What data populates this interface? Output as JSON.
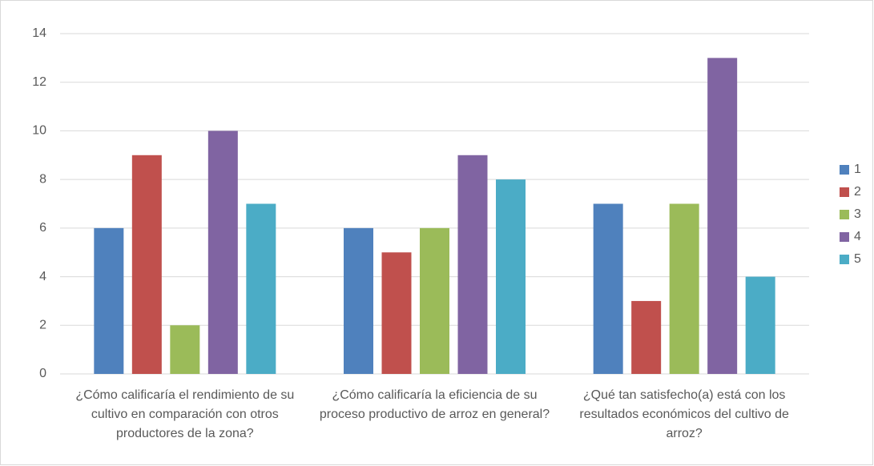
{
  "chart_data": {
    "type": "bar",
    "categories": [
      "¿Cómo calificaría el rendimiento de su cultivo en comparación con otros productores de la zona?",
      "¿Cómo calificaría la eficiencia de su proceso productivo de arroz en general?",
      "¿Qué tan satisfecho(a) está con los resultados económicos del cultivo de arroz?"
    ],
    "series": [
      {
        "name": "1",
        "color": "#4f81bd",
        "values": [
          6,
          6,
          7
        ]
      },
      {
        "name": "2",
        "color": "#c0504d",
        "values": [
          9,
          5,
          3
        ]
      },
      {
        "name": "3",
        "color": "#9bbb59",
        "values": [
          2,
          6,
          7
        ]
      },
      {
        "name": "4",
        "color": "#8064a2",
        "values": [
          10,
          9,
          13
        ]
      },
      {
        "name": "5",
        "color": "#4bacc6",
        "values": [
          7,
          8,
          4
        ]
      }
    ],
    "ylim": [
      0,
      14
    ],
    "yticks": [
      0,
      2,
      4,
      6,
      8,
      10,
      12,
      14
    ],
    "grid": true,
    "legend": "right"
  }
}
